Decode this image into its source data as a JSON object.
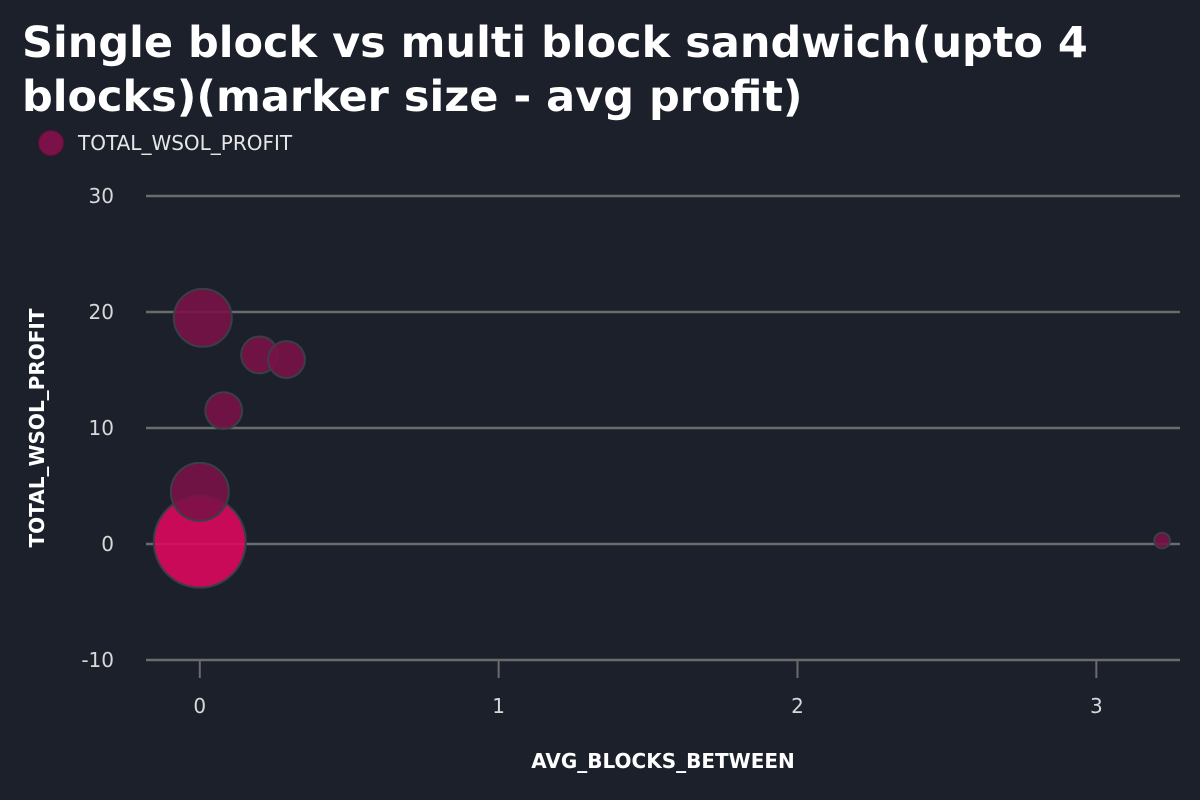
{
  "chart_data": {
    "type": "scatter",
    "title": "Single block vs multi block sandwich(upto 4 blocks)(marker size - avg profit)",
    "xlabel": "AVG_BLOCKS_BETWEEN",
    "ylabel": "TOTAL_WSOL_PROFIT",
    "xlim": [
      -0.18,
      3.28
    ],
    "ylim": [
      -10,
      30
    ],
    "xticks": [
      0,
      1,
      2,
      3
    ],
    "yticks": [
      -10,
      0,
      10,
      20,
      30
    ],
    "grid": true,
    "legend_position": "top-left",
    "series": [
      {
        "name": "TOTAL_WSOL_PROFIT",
        "points": [
          {
            "x": 0.0,
            "y": 0.2,
            "size": 1.0
          },
          {
            "x": 0.0,
            "y": 4.5,
            "size": 0.63
          },
          {
            "x": 0.01,
            "y": 19.5,
            "size": 0.63
          },
          {
            "x": 0.2,
            "y": 16.3,
            "size": 0.4
          },
          {
            "x": 0.29,
            "y": 15.9,
            "size": 0.4
          },
          {
            "x": 0.08,
            "y": 11.5,
            "size": 0.4
          },
          {
            "x": 3.22,
            "y": 0.3,
            "size": 0.17
          }
        ]
      }
    ],
    "colors": {
      "marker": "#7a1148",
      "highlight": "#e0075e",
      "background": "#1b202b",
      "grid": "#6b6b6b"
    }
  }
}
